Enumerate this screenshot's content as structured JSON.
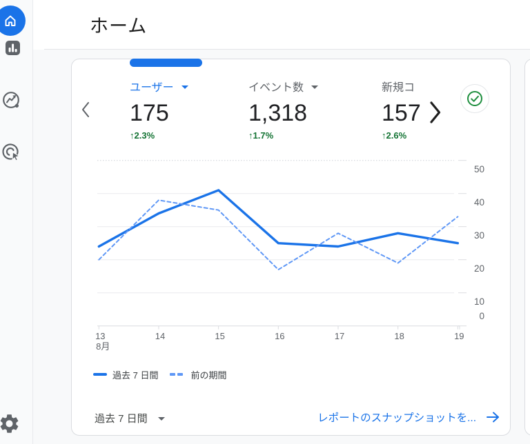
{
  "header": {
    "title": "ホーム"
  },
  "sidebar": {
    "icons": [
      {
        "name": "home-icon"
      },
      {
        "name": "reports-icon"
      },
      {
        "name": "explore-icon"
      },
      {
        "name": "advertising-icon"
      },
      {
        "name": "settings-gear-icon"
      }
    ]
  },
  "card": {
    "metrics": [
      {
        "label": "ユーザー",
        "value": "175",
        "delta": "↑2.3%"
      },
      {
        "label": "イベント数",
        "value": "1,318",
        "delta": "↑1.7%"
      },
      {
        "label": "新規コ",
        "value": "157",
        "delta": "↑2.6%"
      }
    ],
    "footer": {
      "range_label": "過去 7 日間",
      "link_label": "レポートのスナップショットを...",
      "link_arrow": "→"
    }
  },
  "chart_data": {
    "type": "line",
    "x": [
      13,
      14,
      15,
      16,
      17,
      18,
      19
    ],
    "x_month_label": "8月",
    "series": [
      {
        "name": "過去 7 日間",
        "style": "solid",
        "values": [
          24,
          34,
          41,
          25,
          24,
          28,
          25
        ]
      },
      {
        "name": "前の期間",
        "style": "dashed",
        "values": [
          20,
          38,
          35,
          17,
          28,
          19,
          33
        ]
      }
    ],
    "yticks": [
      0,
      10,
      20,
      30,
      40,
      50
    ],
    "ylim": [
      0,
      50
    ],
    "grid": true,
    "legend_position": "bottom"
  },
  "colors": {
    "accent_blue": "#1a73e8",
    "line_current": "#1a73e8",
    "line_previous": "#5e97f6",
    "delta_green": "#137333",
    "check_green": "#1e8e3e",
    "text_primary": "#202124",
    "text_secondary": "#5f6368",
    "grid_line": "#e9eaed",
    "axis_line": "#dadce0",
    "card_border": "#dadce0",
    "page_bg": "#f8f9fa"
  }
}
